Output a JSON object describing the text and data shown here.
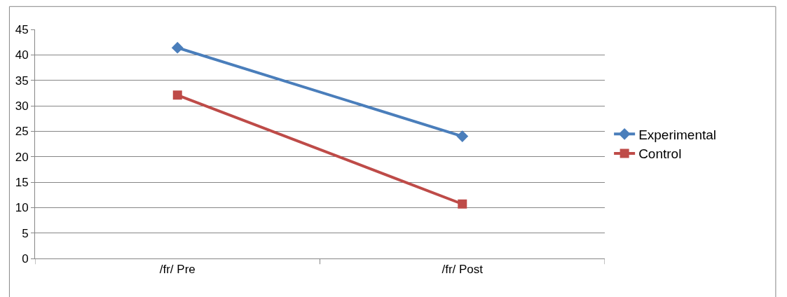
{
  "chart_data": {
    "type": "line",
    "categories": [
      "/fr/ Pre",
      "/fr/ Post"
    ],
    "series": [
      {
        "name": "Experimental",
        "color": "#4a7ebb",
        "values": [
          41.4,
          24.0
        ],
        "marker": "diamond"
      },
      {
        "name": "Control",
        "color": "#be4b48",
        "values": [
          32.1,
          10.7
        ],
        "marker": "square"
      }
    ],
    "ylim": [
      0,
      45
    ],
    "yticks": [
      0,
      5,
      10,
      15,
      20,
      25,
      30,
      35,
      40,
      45
    ],
    "grid": "y",
    "legend": "right",
    "line_style": "solid"
  }
}
